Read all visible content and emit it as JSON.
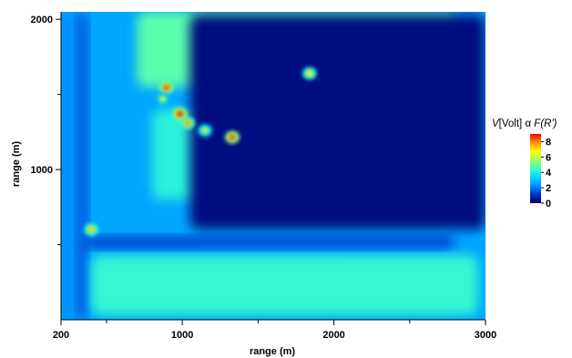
{
  "chart_data": {
    "type": "heatmap",
    "title": "",
    "xlabel": "range (m)",
    "ylabel": "range (m)",
    "xlim": [
      200,
      3000
    ],
    "ylim": [
      0,
      2050
    ],
    "x_ticks": [
      200,
      1000,
      2000,
      3000
    ],
    "x_minor_ticks": [
      500,
      1500,
      2500
    ],
    "y_ticks": [
      1000,
      2000
    ],
    "y_minor_ticks": [
      500,
      1500
    ],
    "colorbar": {
      "label_parts": [
        {
          "text": "V",
          "italic": true
        },
        {
          "text": "[Volt] α ",
          "italic": false
        },
        {
          "text": "F(R')",
          "italic": true
        }
      ],
      "min": 0,
      "max": 9,
      "ticks": [
        0,
        2,
        4,
        6,
        8
      ],
      "colors": [
        "#000070",
        "#0030c8",
        "#0090ff",
        "#00d8ff",
        "#40ffc8",
        "#a0ff60",
        "#ffff00",
        "#ff9000",
        "#ff0000"
      ]
    },
    "background_value": 2.6,
    "regions": [
      {
        "feature": "noise-floor near edge",
        "x": [
          200,
          300
        ],
        "y": [
          0,
          2050
        ],
        "value": 2.2
      },
      {
        "feature": "vertical band",
        "x": [
          300,
          380
        ],
        "y": [
          0,
          2050
        ],
        "value": 1.6
      },
      {
        "feature": "upper green plume",
        "x": [
          700,
          2800
        ],
        "y": [
          1550,
          2050
        ],
        "value": 4.8
      },
      {
        "feature": "mid green region",
        "x": [
          800,
          1700
        ],
        "y": [
          800,
          1400
        ],
        "value": 4.1
      },
      {
        "feature": "lower green region",
        "x": [
          400,
          2950
        ],
        "y": [
          30,
          430
        ],
        "value": 4.3
      },
      {
        "feature": "horizontal blue band",
        "x": [
          350,
          2800
        ],
        "y": [
          470,
          560
        ],
        "value": 1.4
      },
      {
        "feature": "low-signal region",
        "x": [
          1050,
          3000
        ],
        "y": [
          600,
          2030
        ],
        "value": 0.2
      }
    ],
    "hotspots": [
      {
        "x": 400,
        "y": 600,
        "value": 7.2
      },
      {
        "x": 895,
        "y": 1545,
        "value": 8.2
      },
      {
        "x": 870,
        "y": 1470,
        "value": 6.0
      },
      {
        "x": 985,
        "y": 1370,
        "value": 8.6
      },
      {
        "x": 1035,
        "y": 1310,
        "value": 7.6
      },
      {
        "x": 1150,
        "y": 1260,
        "value": 6.2
      },
      {
        "x": 1330,
        "y": 1215,
        "value": 8.3
      },
      {
        "x": 1840,
        "y": 1640,
        "value": 6.8
      }
    ]
  }
}
